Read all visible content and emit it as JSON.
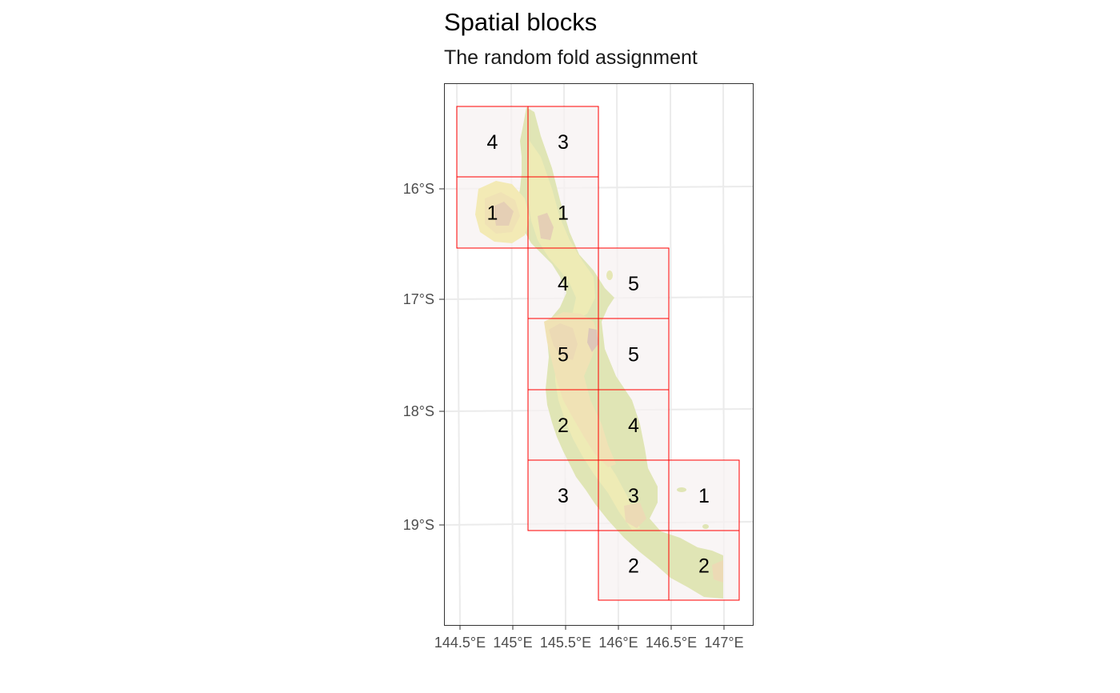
{
  "title": "Spatial blocks",
  "subtitle": "The random fold assignment",
  "colors": {
    "panel_border": "#333333",
    "grid": "#ebebeb",
    "block_fill": "#f7f2f2",
    "block_border": "#ff0000",
    "terrain": [
      "#9dbf00",
      "#b5c800",
      "#d2d800",
      "#e6d400",
      "#dcb400",
      "#cc9200",
      "#b06800",
      "#8f4a10"
    ]
  },
  "axes": {
    "x_labels": [
      "144.5°E",
      "145°E",
      "145.5°E",
      "146°E",
      "146.5°E",
      "147°E"
    ],
    "y_labels": [
      "16°S",
      "17°S",
      "18°S",
      "19°S"
    ]
  },
  "blocks": [
    {
      "col": 0,
      "row": 0,
      "fold": "4"
    },
    {
      "col": 1,
      "row": 0,
      "fold": "3"
    },
    {
      "col": 0,
      "row": 1,
      "fold": "1"
    },
    {
      "col": 1,
      "row": 1,
      "fold": "1"
    },
    {
      "col": 1,
      "row": 2,
      "fold": "4"
    },
    {
      "col": 2,
      "row": 2,
      "fold": "5"
    },
    {
      "col": 1,
      "row": 3,
      "fold": "5"
    },
    {
      "col": 2,
      "row": 3,
      "fold": "5"
    },
    {
      "col": 1,
      "row": 4,
      "fold": "2"
    },
    {
      "col": 2,
      "row": 4,
      "fold": "4"
    },
    {
      "col": 1,
      "row": 5,
      "fold": "3"
    },
    {
      "col": 2,
      "row": 5,
      "fold": "3"
    },
    {
      "col": 3,
      "row": 5,
      "fold": "1"
    },
    {
      "col": 2,
      "row": 6,
      "fold": "2"
    },
    {
      "col": 3,
      "row": 6,
      "fold": "2"
    }
  ]
}
